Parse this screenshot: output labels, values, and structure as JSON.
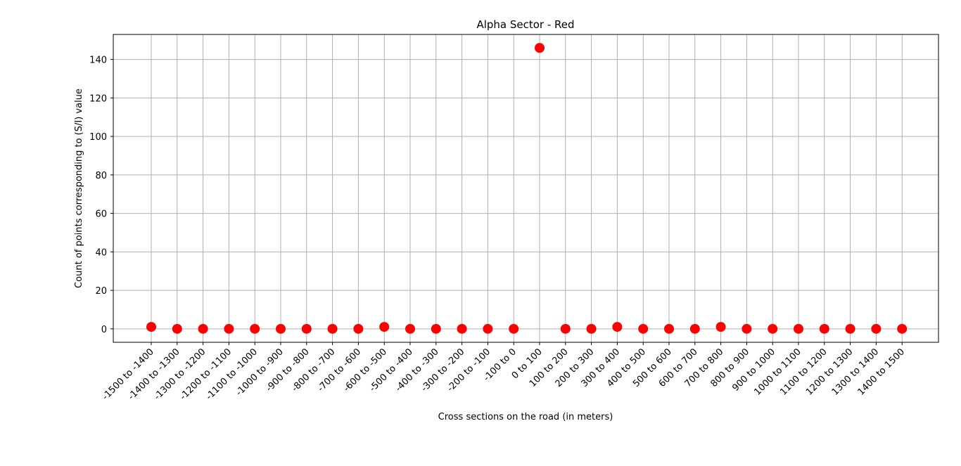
{
  "chart_data": {
    "type": "scatter",
    "title": "Alpha Sector - Red",
    "xlabel": "Cross sections on the road (in meters)",
    "ylabel": "Count of points corresponding to (S/I) value",
    "categories": [
      "-1500 to -1400",
      "-1400 to -1300",
      "-1300 to -1200",
      "-1200 to -1100",
      "-1100 to -1000",
      "-1000 to -900",
      "-900 to -800",
      "-800 to -700",
      "-700 to -600",
      "-600 to -500",
      "-500 to -400",
      "-400 to -300",
      "-300 to -200",
      "-200 to -100",
      "-100 to 0",
      "0 to 100",
      "100 to 200",
      "200 to 300",
      "300 to 400",
      "400 to 500",
      "500 to 600",
      "600 to 700",
      "700 to 800",
      "800 to 900",
      "900 to 1000",
      "1000 to 1100",
      "1100 to 1200",
      "1200 to 1300",
      "1300 to 1400",
      "1400 to 1500"
    ],
    "values": [
      1,
      0,
      0,
      0,
      0,
      0,
      0,
      0,
      0,
      1,
      0,
      0,
      0,
      0,
      0,
      146,
      0,
      0,
      1,
      0,
      0,
      0,
      1,
      0,
      0,
      0,
      0,
      0,
      0,
      0
    ],
    "ylim": [
      -7,
      153
    ],
    "yticks": [
      0,
      20,
      40,
      60,
      80,
      100,
      120,
      140
    ],
    "grid": true,
    "marker_color": "#ff0000"
  }
}
